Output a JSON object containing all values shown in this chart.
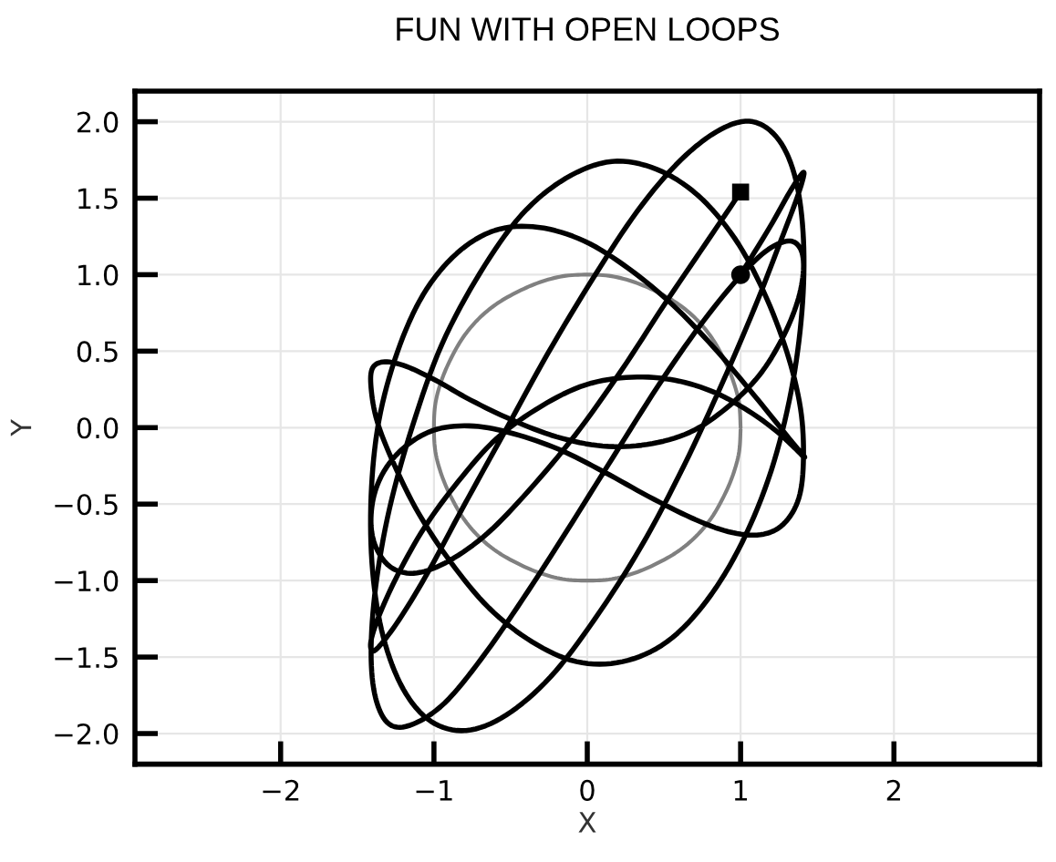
{
  "chart_data": {
    "type": "line",
    "title": "FUN WITH OPEN LOOPS",
    "xlabel": "X",
    "ylabel": "Y",
    "series": [
      {
        "color": "#808080",
        "x": [
          1.0,
          0.99,
          0.95,
          0.89,
          0.81,
          0.71,
          0.59,
          0.45,
          0.31,
          0.16,
          0.0,
          -0.16,
          -0.31,
          -0.45,
          -0.59,
          -0.71,
          -0.81,
          -0.89,
          -0.95,
          -0.99,
          -1.0,
          -0.99,
          -0.95,
          -0.89,
          -0.81,
          -0.71,
          -0.59,
          -0.45,
          -0.31,
          -0.16,
          0.0,
          0.16,
          0.31,
          0.45,
          0.59,
          0.71,
          0.81,
          0.89,
          0.95,
          0.99,
          1.0
        ],
        "values": [
          0.0,
          0.16,
          0.31,
          0.45,
          0.59,
          0.71,
          0.81,
          0.89,
          0.95,
          0.99,
          1.0,
          0.99,
          0.95,
          0.89,
          0.81,
          0.71,
          0.59,
          0.45,
          0.31,
          0.16,
          0.0,
          -0.16,
          -0.31,
          -0.45,
          -0.59,
          -0.71,
          -0.81,
          -0.89,
          -0.95,
          -0.99,
          -1.0,
          -0.99,
          -0.95,
          -0.89,
          -0.81,
          -0.71,
          -0.59,
          -0.45,
          -0.31,
          -0.16,
          -0.01
        ]
      },
      {
        "color": "#000000",
        "x": [
          1.0,
          1.19,
          1.32,
          1.4,
          1.41,
          1.36,
          1.25,
          1.09,
          0.88,
          0.63,
          0.35,
          0.05,
          -0.24,
          -0.53,
          -0.79,
          -1.02,
          -1.2,
          -1.33,
          -1.4,
          -1.41,
          -1.36,
          -1.24,
          -1.07,
          -0.85,
          -0.6,
          -0.32,
          -0.02,
          0.27,
          0.56,
          0.82,
          1.04,
          1.22,
          1.34,
          1.41,
          1.41,
          1.35,
          1.23,
          1.05,
          0.83,
          0.57,
          0.29,
          -0.01,
          -0.3,
          -0.59,
          -0.84,
          -1.06,
          -1.23,
          -1.35,
          -1.41,
          -1.4,
          -1.34,
          -1.21,
          -1.03,
          -0.81,
          -0.54,
          -0.26,
          0.04,
          0.33,
          0.61,
          0.87,
          1.08,
          1.25,
          1.36,
          1.41,
          1.4,
          1.33,
          1.2,
          1.01,
          0.78,
          0.52,
          0.23,
          -0.07,
          -0.36,
          -0.64,
          -0.89,
          -1.1,
          -1.26,
          -1.37,
          -1.41,
          -1.4,
          -1.32,
          -1.18,
          -0.99,
          -0.76,
          -0.49,
          -0.2,
          0.1,
          0.39,
          0.67,
          0.91,
          1.12,
          1.27,
          1.37,
          1.41,
          1.39,
          1.31,
          1.16,
          0.97,
          0.73,
          0.46,
          0.17,
          -0.13,
          -0.42,
          -0.69,
          -0.93,
          -1.14,
          -1.29,
          -1.38,
          -1.41,
          -1.38,
          -1.29,
          -1.14,
          -0.95,
          -0.7,
          -0.43,
          -0.14,
          0.16,
          0.45,
          0.72,
          0.96,
          1.15,
          1.3,
          1.39,
          1.41,
          1.38,
          1.28,
          1.13,
          0.92,
          0.68,
          0.4,
          0.11,
          -0.19,
          -0.48,
          -0.74,
          -0.98,
          -1.17,
          -1.31,
          -1.39,
          -1.41,
          -1.37,
          -1.27,
          -1.11,
          -0.9,
          -0.65,
          -0.38,
          -0.08,
          0.22,
          0.5,
          0.77,
          1.0
        ],
        "values": [
          1.0,
          1.31,
          1.54,
          1.66,
          1.64,
          1.48,
          1.19,
          0.78,
          0.29,
          -0.25,
          -0.78,
          -1.25,
          -1.63,
          -1.88,
          -1.98,
          -1.92,
          -1.71,
          -1.37,
          -0.94,
          -0.45,
          0.04,
          0.49,
          0.87,
          1.14,
          1.29,
          1.31,
          1.22,
          1.04,
          0.8,
          0.53,
          0.27,
          0.05,
          -0.1,
          -0.18,
          -0.19,
          -0.13,
          -0.02,
          0.11,
          0.23,
          0.31,
          0.33,
          0.28,
          0.14,
          -0.07,
          -0.35,
          -0.65,
          -0.95,
          -1.21,
          -1.39,
          -1.46,
          -1.41,
          -1.23,
          -0.93,
          -0.52,
          -0.03,
          0.48,
          0.98,
          1.42,
          1.75,
          1.95,
          2.0,
          1.88,
          1.62,
          1.23,
          0.76,
          0.24,
          -0.28,
          -0.75,
          -1.13,
          -1.4,
          -1.53,
          -1.53,
          -1.4,
          -1.18,
          -0.88,
          -0.56,
          -0.24,
          0.04,
          0.26,
          0.39,
          0.43,
          0.4,
          0.31,
          0.18,
          0.05,
          -0.06,
          -0.12,
          -0.11,
          -0.03,
          0.13,
          0.34,
          0.58,
          0.82,
          1.03,
          1.17,
          1.22,
          1.15,
          0.96,
          0.66,
          0.27,
          -0.19,
          -0.67,
          -1.12,
          -1.51,
          -1.8,
          -1.94,
          -1.94,
          -1.77,
          -1.47,
          -1.04,
          -0.53,
          0.01,
          0.54,
          1.01,
          1.39,
          1.63,
          1.74,
          1.69,
          1.52,
          1.24,
          0.89,
          0.5,
          0.13,
          -0.2,
          -0.46,
          -0.63,
          -0.7,
          -0.68,
          -0.59,
          -0.45,
          -0.29,
          -0.14,
          -0.04,
          0.01,
          -0.01,
          -0.11,
          -0.26,
          -0.44,
          -0.64,
          -0.8,
          -0.92,
          -0.95,
          -0.87,
          -0.69,
          -0.41,
          -0.05,
          0.37,
          0.8,
          1.2,
          1.54
        ]
      },
      {
        "type": "scatter",
        "color": "#000000",
        "marker": "circle",
        "x": [
          1.0
        ],
        "values": [
          1.0
        ]
      },
      {
        "type": "scatter",
        "color": "#000000",
        "marker": "square",
        "x": [
          1.0
        ],
        "values": [
          1.54
        ]
      }
    ],
    "xlim": [
      -2.95,
      2.95
    ],
    "ylim": [
      -2.2,
      2.2
    ],
    "xticks": [
      -2,
      -1,
      0,
      1,
      2
    ],
    "yticks": [
      {
        "value": -2.0,
        "label": "−2.0"
      },
      {
        "value": -1.5,
        "label": "−1.5"
      },
      {
        "value": -1.0,
        "label": "−1.0"
      },
      {
        "value": -0.5,
        "label": "−0.5"
      },
      {
        "value": 0.0,
        "label": "0.0"
      },
      {
        "value": 0.5,
        "label": "0.5"
      },
      {
        "value": 1.0,
        "label": "1.0"
      },
      {
        "value": 1.5,
        "label": "1.5"
      },
      {
        "value": 2.0,
        "label": "2.0"
      }
    ],
    "grid": true
  }
}
